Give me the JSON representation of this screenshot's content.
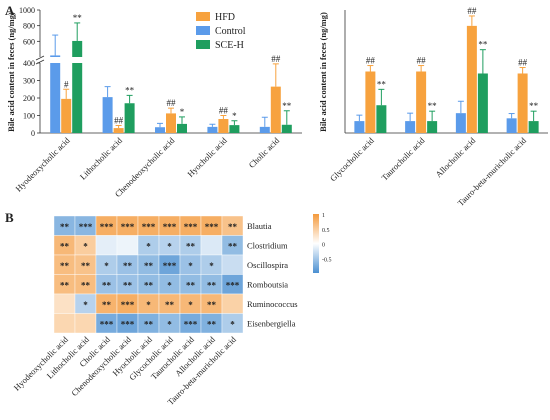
{
  "panels": {
    "a": "A",
    "b": "B"
  },
  "chart_data": [
    {
      "type": "bar",
      "ylabel": "Bile acid content in feces  (ng/mg)",
      "categories": [
        "Hyodeoxycholic acid",
        "Lithocholic acid",
        "Chenodeoxycholic acid",
        "Hyocholic acid",
        "Cholic acid"
      ],
      "broken_axis": true,
      "lower_ticks": [
        0,
        100,
        200,
        300,
        400
      ],
      "upper_ticks": [
        400,
        600,
        800,
        1000
      ],
      "series": [
        {
          "name": "Control",
          "color": "#5b9bea",
          "values": [
            420,
            205,
            33,
            35,
            35
          ],
          "errors": [
            260,
            60,
            22,
            15,
            55
          ],
          "sig": [
            "",
            "",
            "",
            "",
            ""
          ]
        },
        {
          "name": "HFD",
          "color": "#f7a23e",
          "values": [
            195,
            28,
            112,
            80,
            265
          ],
          "errors": [
            55,
            15,
            30,
            20,
            130
          ],
          "sig": [
            "#",
            "##",
            "##",
            "##",
            "##"
          ]
        },
        {
          "name": "SCE-H",
          "color": "#1f9e5f",
          "values": [
            605,
            170,
            52,
            45,
            47
          ],
          "errors": [
            230,
            45,
            40,
            25,
            80
          ],
          "sig": [
            "**",
            "**",
            "*",
            "*",
            "**"
          ]
        }
      ]
    },
    {
      "type": "bar",
      "ylabel": "Bile acid content in feces  (ng/mg)",
      "categories": [
        "Glycocholic acid",
        "Taurocholic acid",
        "Allocholic acid",
        "Tauro-beta-muricholic acid"
      ],
      "series": [
        {
          "name": "Control",
          "color": "#5b9bea",
          "values": [
            0.3,
            0.3,
            0.5,
            0.37
          ],
          "errors": [
            0.15,
            0.2,
            0.3,
            0.12
          ],
          "sig": [
            "",
            "",
            "",
            ""
          ]
        },
        {
          "name": "HFD",
          "color": "#f7a23e",
          "values": [
            1.55,
            1.55,
            2.7,
            1.5
          ],
          "errors": [
            0.15,
            0.15,
            0.25,
            0.15
          ],
          "sig": [
            "##",
            "##",
            "##",
            "##"
          ]
        },
        {
          "name": "SCE-H",
          "color": "#1f9e5f",
          "values": [
            0.7,
            0.3,
            1.5,
            0.3
          ],
          "errors": [
            0.4,
            0.25,
            0.6,
            0.25
          ],
          "sig": [
            "**",
            "**",
            "**",
            "**"
          ]
        }
      ]
    },
    {
      "type": "heatmap",
      "rows": [
        "Blautia",
        "Clostridium",
        "Oscillospira",
        "Romboutsia",
        "Ruminococcus",
        "Eisenbergiella"
      ],
      "columns": [
        "Hyodeoxycholic acid",
        "Lithocholic acid",
        "Cholic acid",
        "Chenodeoxycholic acid",
        "Hyocholic acid",
        "Glycocholic acid",
        "Taurocholic acid",
        "Allocholic acid",
        "Tauro-beta-muricholic acid"
      ],
      "values": [
        [
          -0.65,
          -0.65,
          0.8,
          0.8,
          0.8,
          0.8,
          0.8,
          0.8,
          0.6
        ],
        [
          0.7,
          0.5,
          -0.15,
          -0.1,
          -0.45,
          -0.4,
          -0.45,
          -0.2,
          -0.6
        ],
        [
          0.65,
          0.6,
          -0.45,
          -0.55,
          -0.6,
          -0.8,
          -0.55,
          -0.45,
          -0.3
        ],
        [
          0.65,
          0.65,
          -0.55,
          -0.55,
          -0.6,
          -0.6,
          -0.6,
          -0.6,
          -0.8
        ],
        [
          0.3,
          -0.4,
          0.75,
          0.8,
          0.7,
          0.7,
          0.7,
          0.7,
          0.45
        ],
        [
          0.4,
          0.4,
          -0.75,
          -0.8,
          -0.7,
          -0.6,
          -0.75,
          -0.7,
          -0.45
        ]
      ],
      "stars": [
        [
          "**",
          "***",
          "***",
          "***",
          "***",
          "***",
          "***",
          "***",
          "**"
        ],
        [
          "**",
          "*",
          "",
          "",
          "*",
          "*",
          "**",
          "",
          "**"
        ],
        [
          "**",
          "**",
          "*",
          "**",
          "**",
          "***",
          "*",
          "*",
          ""
        ],
        [
          "**",
          "**",
          "**",
          "**",
          "**",
          "*",
          "**",
          "**",
          "***"
        ],
        [
          "",
          "*",
          "**",
          "***",
          "*",
          "**",
          "*",
          "**",
          ""
        ],
        [
          "",
          "",
          "***",
          "***",
          "**",
          "*",
          "***",
          "**",
          "*"
        ]
      ],
      "color_scale": {
        "min": -1,
        "max": 1,
        "ticks": [
          1,
          0.5,
          0,
          -0.5
        ],
        "tick_labels": [
          "1",
          "0.5",
          "0",
          "-0.5"
        ],
        "low": "#4a8fd1",
        "mid": "#ffffff",
        "high": "#f49a3c"
      }
    }
  ]
}
